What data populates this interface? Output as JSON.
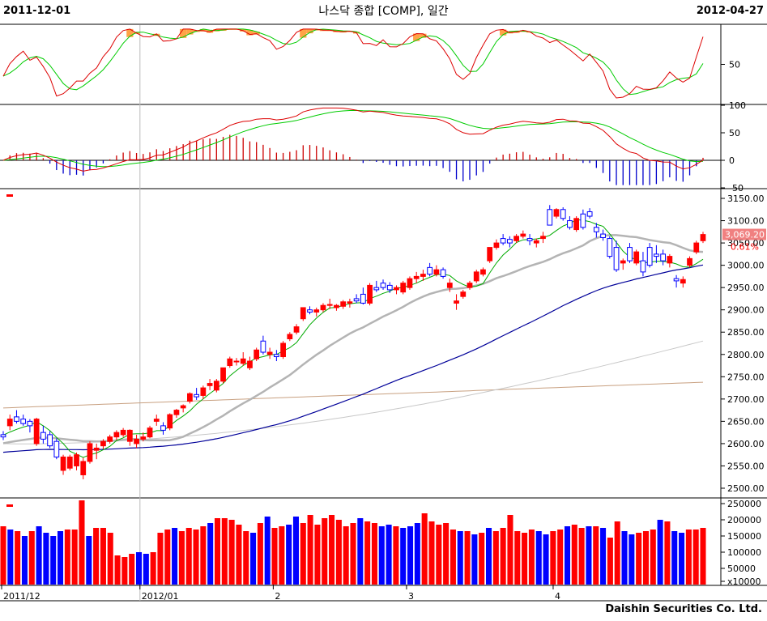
{
  "header": {
    "start_date": "2011-12-01",
    "title": "나스닥 종합 [COMP], 일간",
    "end_date": "2012-04-27"
  },
  "footer": "Daishin Securities Co. Ltd.",
  "price_label": {
    "value": "3,069.20",
    "change": "0.61%"
  },
  "colors": {
    "up": "#ff0000",
    "down": "#0000ff",
    "ma5": "#00aa00",
    "ma20": "#b4b4b4",
    "ma60": "#000099",
    "ma120": "#c8c8c8",
    "ma240": "#c8a080",
    "grid": "#000000"
  },
  "chart_data": [
    {
      "type": "line",
      "name": "stochastic",
      "yticks": [
        {
          "value": 50,
          "label": "50"
        }
      ],
      "ylim": [
        0,
        100
      ]
    },
    {
      "type": "line",
      "name": "macd",
      "yticks": [
        {
          "value": 100,
          "label": "100"
        },
        {
          "value": 50,
          "label": "50"
        },
        {
          "value": 0,
          "label": "0"
        },
        {
          "value": -50,
          "label": "-50"
        }
      ],
      "ylim": [
        -50,
        100
      ]
    },
    {
      "type": "candlestick",
      "name": "price",
      "yticks": [
        {
          "value": 3150,
          "label": "3150.00"
        },
        {
          "value": 3100,
          "label": "3100.00"
        },
        {
          "value": 3050,
          "label": "3050.00"
        },
        {
          "value": 3000,
          "label": "3000.00"
        },
        {
          "value": 2950,
          "label": "2950.00"
        },
        {
          "value": 2900,
          "label": "2900.00"
        },
        {
          "value": 2850,
          "label": "2850.00"
        },
        {
          "value": 2800,
          "label": "2800.00"
        },
        {
          "value": 2750,
          "label": "2750.00"
        },
        {
          "value": 2700,
          "label": "2700.00"
        },
        {
          "value": 2650,
          "label": "2650.00"
        },
        {
          "value": 2600,
          "label": "2600.00"
        },
        {
          "value": 2550,
          "label": "2550.00"
        },
        {
          "value": 2500,
          "label": "2500.00"
        }
      ],
      "ylim": [
        2480,
        3170
      ],
      "ohlc": [
        [
          2620,
          2628,
          2608,
          2615
        ],
        [
          2640,
          2665,
          2630,
          2655
        ],
        [
          2660,
          2675,
          2645,
          2650
        ],
        [
          2655,
          2665,
          2640,
          2645
        ],
        [
          2650,
          2655,
          2625,
          2640
        ],
        [
          2600,
          2658,
          2595,
          2655
        ],
        [
          2625,
          2640,
          2600,
          2610
        ],
        [
          2620,
          2628,
          2590,
          2595
        ],
        [
          2605,
          2612,
          2565,
          2570
        ],
        [
          2540,
          2575,
          2530,
          2570
        ],
        [
          2545,
          2575,
          2540,
          2570
        ],
        [
          2550,
          2580,
          2540,
          2575
        ],
        [
          2530,
          2568,
          2520,
          2560
        ],
        [
          2560,
          2605,
          2555,
          2600
        ],
        [
          2585,
          2600,
          2565,
          2590
        ],
        [
          2595,
          2610,
          2588,
          2605
        ],
        [
          2605,
          2620,
          2600,
          2615
        ],
        [
          2615,
          2630,
          2608,
          2625
        ],
        [
          2620,
          2635,
          2615,
          2630
        ],
        [
          2605,
          2632,
          2595,
          2630
        ],
        [
          2600,
          2620,
          2590,
          2610
        ],
        [
          2610,
          2625,
          2605,
          2615
        ],
        [
          2615,
          2640,
          2612,
          2635
        ],
        [
          2650,
          2665,
          2640,
          2655
        ],
        [
          2640,
          2648,
          2620,
          2630
        ],
        [
          2635,
          2668,
          2630,
          2665
        ],
        [
          2665,
          2678,
          2658,
          2675
        ],
        [
          2680,
          2688,
          2670,
          2685
        ],
        [
          2695,
          2715,
          2690,
          2712
        ],
        [
          2710,
          2725,
          2698,
          2705
        ],
        [
          2708,
          2730,
          2700,
          2725
        ],
        [
          2730,
          2745,
          2720,
          2735
        ],
        [
          2720,
          2745,
          2715,
          2740
        ],
        [
          2740,
          2770,
          2735,
          2770
        ],
        [
          2775,
          2795,
          2770,
          2790
        ],
        [
          2785,
          2792,
          2775,
          2785
        ],
        [
          2780,
          2805,
          2775,
          2790
        ],
        [
          2770,
          2795,
          2765,
          2785
        ],
        [
          2790,
          2815,
          2785,
          2810
        ],
        [
          2830,
          2842,
          2800,
          2805
        ],
        [
          2800,
          2815,
          2790,
          2805
        ],
        [
          2800,
          2810,
          2785,
          2795
        ],
        [
          2795,
          2830,
          2790,
          2825
        ],
        [
          2835,
          2850,
          2830,
          2845
        ],
        [
          2850,
          2868,
          2845,
          2862
        ],
        [
          2880,
          2905,
          2875,
          2905
        ],
        [
          2900,
          2908,
          2890,
          2895
        ],
        [
          2895,
          2905,
          2885,
          2900
        ],
        [
          2900,
          2915,
          2895,
          2910
        ],
        [
          2910,
          2925,
          2902,
          2912
        ],
        [
          2905,
          2913,
          2898,
          2910
        ],
        [
          2908,
          2922,
          2902,
          2918
        ],
        [
          2915,
          2925,
          2905,
          2918
        ],
        [
          2925,
          2935,
          2915,
          2920
        ],
        [
          2935,
          2950,
          2912,
          2915
        ],
        [
          2915,
          2960,
          2910,
          2955
        ],
        [
          2950,
          2965,
          2940,
          2945
        ],
        [
          2960,
          2968,
          2945,
          2950
        ],
        [
          2955,
          2962,
          2938,
          2945
        ],
        [
          2945,
          2955,
          2935,
          2950
        ],
        [
          2940,
          2965,
          2935,
          2960
        ],
        [
          2950,
          2975,
          2945,
          2970
        ],
        [
          2970,
          2985,
          2960,
          2975
        ],
        [
          2975,
          2990,
          2965,
          2980
        ],
        [
          2995,
          3005,
          2975,
          2980
        ],
        [
          2980,
          3000,
          2975,
          2990
        ],
        [
          2990,
          2995,
          2970,
          2975
        ],
        [
          2950,
          2970,
          2940,
          2960
        ],
        [
          2915,
          2935,
          2900,
          2920
        ],
        [
          2930,
          2945,
          2925,
          2940
        ],
        [
          2950,
          2965,
          2945,
          2960
        ],
        [
          2965,
          2990,
          2960,
          2985
        ],
        [
          2980,
          2995,
          2975,
          2990
        ],
        [
          3010,
          3040,
          3005,
          3040
        ],
        [
          3040,
          3058,
          3035,
          3050
        ],
        [
          3060,
          3070,
          3045,
          3050
        ],
        [
          3058,
          3065,
          3040,
          3050
        ],
        [
          3055,
          3070,
          3050,
          3065
        ],
        [
          3065,
          3078,
          3060,
          3070
        ],
        [
          3060,
          3070,
          3045,
          3055
        ],
        [
          3050,
          3060,
          3040,
          3055
        ],
        [
          3060,
          3075,
          3050,
          3065
        ],
        [
          3125,
          3135,
          3090,
          3090
        ],
        [
          3110,
          3128,
          3105,
          3125
        ],
        [
          3125,
          3130,
          3100,
          3105
        ],
        [
          3100,
          3110,
          3080,
          3085
        ],
        [
          3080,
          3110,
          3075,
          3105
        ],
        [
          3115,
          3125,
          3080,
          3085
        ],
        [
          3120,
          3128,
          3105,
          3110
        ],
        [
          3085,
          3095,
          3062,
          3075
        ],
        [
          3070,
          3080,
          3055,
          3062
        ],
        [
          3060,
          3065,
          3015,
          3020
        ],
        [
          3040,
          3055,
          2985,
          2990
        ],
        [
          3005,
          3015,
          2990,
          3010
        ],
        [
          3040,
          3050,
          3005,
          3010
        ],
        [
          3005,
          3035,
          3000,
          3030
        ],
        [
          3010,
          3030,
          2975,
          2985
        ],
        [
          3040,
          3050,
          2995,
          3000
        ],
        [
          3025,
          3045,
          3005,
          3020
        ],
        [
          3025,
          3035,
          3000,
          3010
        ],
        [
          3005,
          3025,
          2995,
          3020
        ],
        [
          2970,
          2978,
          2950,
          2965
        ],
        [
          2960,
          2975,
          2950,
          2968
        ],
        [
          3000,
          3020,
          2995,
          3015
        ],
        [
          3030,
          3055,
          3025,
          3050
        ],
        [
          3055,
          3075,
          3050,
          3069
        ]
      ],
      "ma5_endpoints": "smoothed 5-day",
      "last_close": 3069.2
    },
    {
      "type": "bar",
      "name": "volume",
      "unit": "x10000",
      "yticks": [
        {
          "value": 250000,
          "label": "250000"
        },
        {
          "value": 200000,
          "label": "200000"
        },
        {
          "value": 150000,
          "label": "150000"
        },
        {
          "value": 100000,
          "label": "100000"
        },
        {
          "value": 50000,
          "label": "50000"
        },
        {
          "value": 10000,
          "label": "x10000"
        }
      ],
      "ylim": [
        0,
        265000
      ],
      "values": [
        180000,
        170000,
        165000,
        150000,
        165000,
        180000,
        160000,
        150000,
        165000,
        170000,
        170000,
        260000,
        150000,
        175000,
        175000,
        160000,
        90000,
        85000,
        95000,
        100000,
        95000,
        100000,
        160000,
        170000,
        175000,
        165000,
        175000,
        170000,
        180000,
        190000,
        205000,
        205000,
        200000,
        185000,
        165000,
        160000,
        190000,
        210000,
        175000,
        180000,
        185000,
        210000,
        190000,
        215000,
        185000,
        205000,
        215000,
        200000,
        180000,
        190000,
        205000,
        195000,
        190000,
        180000,
        185000,
        180000,
        175000,
        180000,
        190000,
        220000,
        195000,
        185000,
        190000,
        170000,
        165000,
        165000,
        155000,
        160000,
        175000,
        165000,
        175000,
        215000,
        165000,
        160000,
        170000,
        165000,
        155000,
        165000,
        170000,
        180000,
        185000,
        175000,
        180000,
        180000,
        175000,
        145000,
        195000,
        165000,
        155000,
        160000,
        165000,
        170000,
        200000,
        195000,
        165000,
        160000,
        170000,
        170000,
        175000
      ],
      "up": [
        1,
        0,
        1,
        0,
        1,
        0,
        0,
        0,
        0,
        1,
        1,
        1,
        0,
        1,
        1,
        1,
        1,
        1,
        1,
        0,
        0,
        1,
        1,
        1,
        0,
        1,
        1,
        1,
        1,
        0,
        1,
        1,
        1,
        1,
        1,
        0,
        1,
        0,
        1,
        1,
        0,
        0,
        1,
        1,
        1,
        1,
        1,
        1,
        1,
        1,
        0,
        1,
        1,
        0,
        0,
        1,
        0,
        0,
        0,
        1,
        1,
        1,
        1,
        1,
        0,
        1,
        0,
        1,
        0,
        1,
        1,
        1,
        1,
        1,
        1,
        0,
        0,
        1,
        1,
        0,
        1,
        1,
        0,
        1,
        0,
        1,
        1,
        0,
        0,
        1,
        1,
        1,
        0,
        1,
        0,
        0,
        1,
        1,
        1
      ]
    }
  ],
  "xaxis": {
    "labels": [
      {
        "index": 0,
        "label": "2011/12"
      },
      {
        "index": 21,
        "label": "2012/01"
      },
      {
        "index": 41,
        "label": "2"
      },
      {
        "index": 61,
        "label": "3"
      },
      {
        "index": 83,
        "label": "4"
      }
    ]
  }
}
